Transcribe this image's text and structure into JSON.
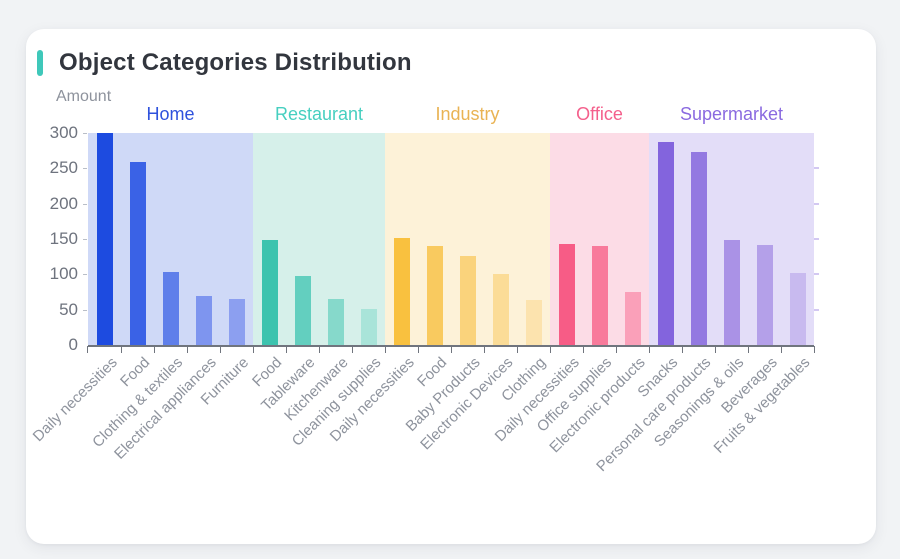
{
  "card": {
    "title": "Object Categories Distribution",
    "accent_color": "#3fc8ba"
  },
  "colors": {
    "page_background": "#f1f3f5",
    "card_background": "#ffffff",
    "title_text": "#32363e",
    "axis_line": "#70757e",
    "y_tick_text": "#6e737e",
    "x_label_text": "#8e939d",
    "y_axis_title_text": "#8d929c",
    "right_tick": "#d3c8f2"
  },
  "chart_data": {
    "type": "bar",
    "title": "Object Categories Distribution",
    "xlabel": "",
    "ylabel": "Amount",
    "ylim": [
      0,
      300
    ],
    "yticks": [
      0,
      50,
      100,
      150,
      200,
      250,
      300
    ],
    "grid": false,
    "legend_position": "group-labels-above-plot",
    "groups": [
      {
        "name": "Home",
        "label_color": "#2f52dd",
        "band_color": "#cfd9f7",
        "bars": [
          {
            "label": "Daily necessities",
            "value": 300,
            "color": "#1d4be0"
          },
          {
            "label": "Food",
            "value": 259,
            "color": "#3a62e6"
          },
          {
            "label": "Clothing & textiles",
            "value": 103,
            "color": "#5f7fea"
          },
          {
            "label": "Electrical appliances",
            "value": 69,
            "color": "#7e95ef"
          },
          {
            "label": "Furniture",
            "value": 65,
            "color": "#8c9ff0"
          }
        ]
      },
      {
        "name": "Restaurant",
        "label_color": "#46cfc0",
        "band_color": "#d6f0ea",
        "bars": [
          {
            "label": "Food",
            "value": 149,
            "color": "#3cc3ae"
          },
          {
            "label": "Tableware",
            "value": 98,
            "color": "#63cfbf"
          },
          {
            "label": "Kitchenware",
            "value": 65,
            "color": "#86d9cb"
          },
          {
            "label": "Cleaning supplies",
            "value": 51,
            "color": "#a9e4d9"
          }
        ]
      },
      {
        "name": "Industry",
        "label_color": "#e9b353",
        "band_color": "#fdf2d8",
        "bars": [
          {
            "label": "Daily necessities",
            "value": 151,
            "color": "#f9c13f"
          },
          {
            "label": "Food",
            "value": 140,
            "color": "#f9ca5f"
          },
          {
            "label": "Baby Products",
            "value": 126,
            "color": "#fad37c"
          },
          {
            "label": "Electronic Devices",
            "value": 100,
            "color": "#fbdc97"
          },
          {
            "label": "Clothing",
            "value": 64,
            "color": "#fce3ae"
          }
        ]
      },
      {
        "name": "Office",
        "label_color": "#f4608c",
        "band_color": "#fcdce6",
        "bars": [
          {
            "label": "Daily necessities",
            "value": 143,
            "color": "#f75c86"
          },
          {
            "label": "Office supplies",
            "value": 140,
            "color": "#f87a9b"
          },
          {
            "label": "Electronic products",
            "value": 75,
            "color": "#faa0b9"
          }
        ]
      },
      {
        "name": "Supermarket",
        "label_color": "#8a6ae0",
        "band_color": "#e3ddf8",
        "bars": [
          {
            "label": "Snacks",
            "value": 287,
            "color": "#8364dd"
          },
          {
            "label": "Personal care products",
            "value": 273,
            "color": "#9379e1"
          },
          {
            "label": "Seasonings & oils",
            "value": 149,
            "color": "#aa92e6"
          },
          {
            "label": "Beverages",
            "value": 141,
            "color": "#b4a0e9"
          },
          {
            "label": "Fruits & vegetables",
            "value": 102,
            "color": "#c8baef"
          }
        ]
      }
    ]
  }
}
